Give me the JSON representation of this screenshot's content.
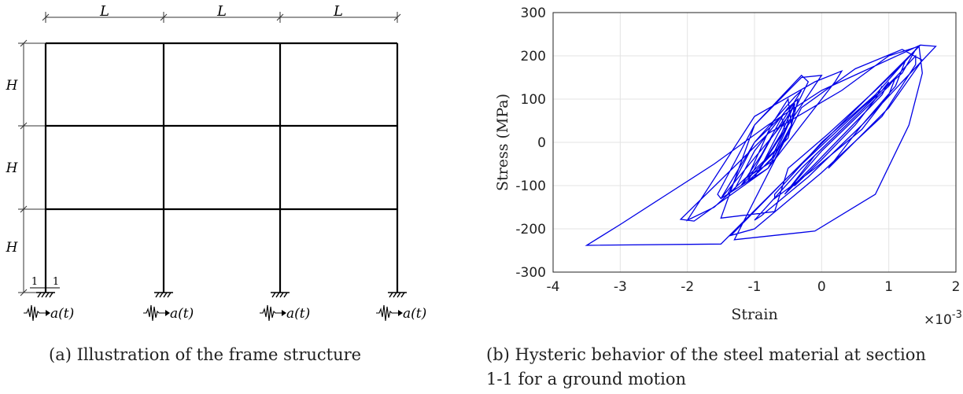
{
  "figure_a": {
    "span_label": "L",
    "story_label": "H",
    "section_labels": [
      "1",
      "1"
    ],
    "excitation_label": "a(t)",
    "bays": 3,
    "stories": 3,
    "caption": "(a) Illustration of the frame structure"
  },
  "figure_b": {
    "caption_line1": "(b) Hysteric behavior of the steel material at section",
    "caption_line2": "1-1 for a ground motion"
  },
  "chart_data": {
    "type": "line",
    "title": "",
    "xlabel": "Strain",
    "ylabel": "Stress (MPa)",
    "x_multiplier": "×10",
    "x_multiplier_exp": "-3",
    "xlim": [
      -4,
      2
    ],
    "ylim": [
      -300,
      300
    ],
    "xticks": [
      -4,
      -3,
      -2,
      -1,
      0,
      1,
      2
    ],
    "yticks": [
      -300,
      -200,
      -100,
      0,
      100,
      200,
      300
    ],
    "grid": true,
    "line_color": "#0000e6",
    "series": [
      {
        "x": [
          1.47,
          0.7,
          0.0,
          -0.8,
          -1.6,
          -2.4,
          -3.0,
          -3.5,
          -1.5,
          1.47,
          1.7,
          1.2,
          0.6,
          0.1,
          0.1,
          1.0,
          1.5,
          1.2,
          0.5,
          -0.3,
          -1.3,
          -0.1,
          0.8,
          1.3,
          1.5,
          1.45,
          1.0,
          0.3,
          -0.8,
          -2.1,
          -1.9,
          -0.8,
          0.2,
          0.3,
          -0.1,
          -1.0,
          -2.0,
          -1.6,
          -0.7,
          -0.2,
          -0.3,
          -1.0,
          -1.55,
          -1.5,
          -0.7,
          -0.3,
          -0.4,
          -1.0,
          -1.4,
          -1.2,
          -0.5,
          -0.35,
          -0.5,
          -1.0,
          -1.3,
          -1.0,
          -0.6,
          -0.4,
          -0.55,
          -0.9,
          -1.2,
          -0.8,
          -0.45,
          -0.5,
          -0.75,
          -1.1,
          -0.7,
          -0.45,
          -0.4,
          -0.65,
          -0.95,
          -0.7,
          -0.5,
          -0.5,
          -0.75,
          -1.1,
          -0.75,
          -0.55,
          -0.6,
          -1.0,
          -1.5,
          -1.0,
          -0.5,
          0.0,
          -0.3,
          -1.0,
          -1.5,
          -0.7,
          -0.5,
          0.1,
          0.8,
          1.2,
          1.45,
          1.4,
          1.2,
          0.6,
          -0.5,
          -1.35,
          -1.0,
          0.0,
          0.9,
          1.4,
          1.4,
          1.1,
          0.5,
          -0.3,
          -1.0,
          -0.9,
          -0.2,
          0.6,
          1.1,
          1.25,
          1.2,
          0.8,
          0.0,
          -0.7,
          -0.7,
          -0.1,
          0.6,
          1.0,
          1.1,
          1.0,
          0.6,
          0.0,
          -0.5,
          -0.55,
          -0.1,
          0.4,
          0.9,
          1.0,
          0.9,
          0.5,
          -0.1,
          -0.45,
          -0.4,
          0.0,
          0.5,
          0.8,
          0.9
        ],
        "y": [
          225,
          170,
          120,
          40,
          -50,
          -130,
          -190,
          -238,
          -235,
          225,
          222,
          140,
          40,
          -60,
          -60,
          80,
          190,
          215,
          170,
          80,
          -225,
          -205,
          -120,
          40,
          160,
          222,
          200,
          120,
          20,
          -178,
          -182,
          -60,
          140,
          165,
          140,
          60,
          -180,
          -150,
          -20,
          140,
          155,
          40,
          -120,
          -130,
          20,
          120,
          105,
          0,
          -120,
          -100,
          10,
          100,
          80,
          -20,
          -110,
          -80,
          20,
          90,
          70,
          -30,
          -100,
          -60,
          40,
          100,
          40,
          -80,
          -40,
          40,
          90,
          20,
          -70,
          -30,
          40,
          60,
          10,
          -90,
          -40,
          30,
          60,
          0,
          -130,
          -80,
          40,
          155,
          150,
          40,
          -175,
          -160,
          -60,
          20,
          120,
          180,
          222,
          215,
          160,
          80,
          -80,
          -215,
          -200,
          -70,
          60,
          180,
          200,
          150,
          60,
          -60,
          -180,
          -170,
          -80,
          40,
          130,
          190,
          180,
          110,
          0,
          -120,
          -130,
          -60,
          30,
          110,
          150,
          130,
          70,
          -20,
          -110,
          -120,
          -50,
          30,
          110,
          140,
          120,
          60,
          -30,
          -100,
          -100,
          -40,
          40,
          100,
          130
        ]
      }
    ]
  }
}
